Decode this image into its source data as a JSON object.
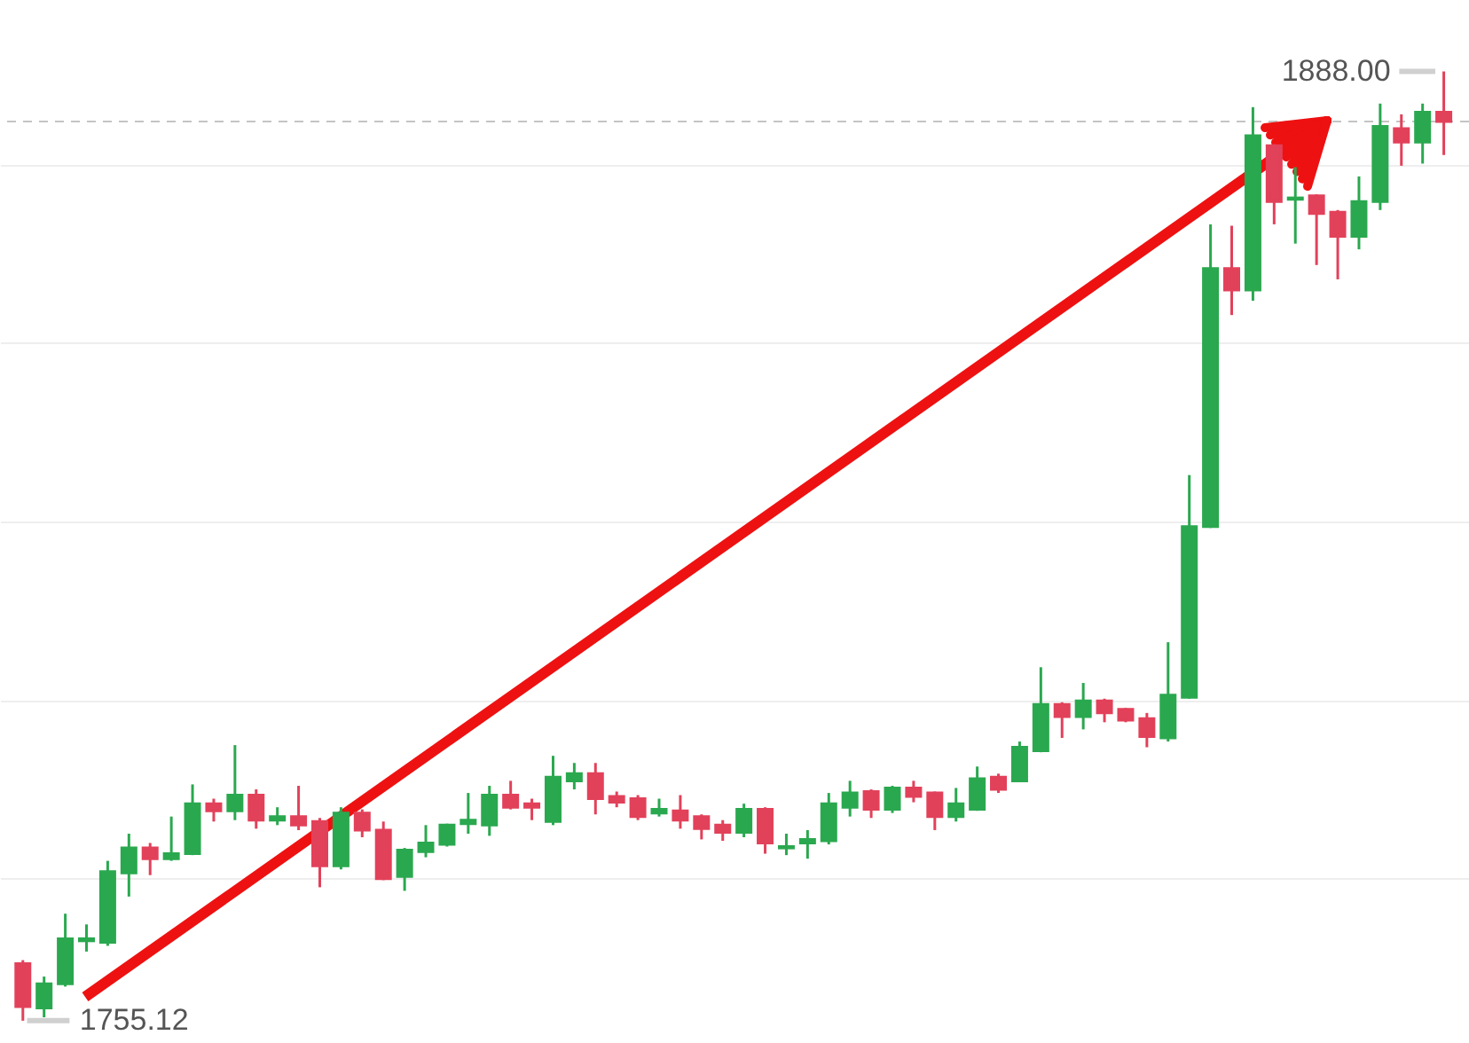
{
  "chart_data": {
    "type": "candlestick",
    "categories": [
      null,
      null,
      null,
      null,
      null,
      null,
      null,
      null,
      null,
      null,
      null,
      null,
      null,
      null,
      null,
      null,
      null,
      null,
      null,
      null,
      null,
      null,
      null,
      null,
      null,
      null,
      null,
      null,
      null,
      null,
      null,
      null,
      null,
      null,
      null,
      null,
      null,
      null,
      null,
      null,
      null,
      null,
      null,
      null,
      null,
      null,
      null,
      null,
      null,
      null,
      null,
      null,
      null,
      null,
      null,
      null,
      null,
      null,
      null,
      null,
      null,
      null,
      null,
      null,
      null,
      null,
      null,
      null
    ],
    "ohlc": [
      [
        1763.1,
        1763.6,
        1755.12,
        1757.1
      ],
      [
        1756.9,
        1761.3,
        1755.6,
        1760.3
      ],
      [
        1760.3,
        1770.1,
        1759.9,
        1766.6
      ],
      [
        1766.3,
        1768.6,
        1764.8,
        1766.6
      ],
      [
        1766.1,
        1777.5,
        1765.6,
        1776.0
      ],
      [
        1775.8,
        1781.3,
        1772.5,
        1779.3
      ],
      [
        1779.3,
        1780.0,
        1775.5,
        1777.8
      ],
      [
        1777.8,
        1783.7,
        1777.5,
        1778.5
      ],
      [
        1778.5,
        1788.2,
        1778.3,
        1785.5
      ],
      [
        1785.5,
        1786.2,
        1783.0,
        1784.5
      ],
      [
        1784.5,
        1793.7,
        1783.2,
        1786.7
      ],
      [
        1786.7,
        1787.5,
        1782.0,
        1783.2
      ],
      [
        1783.2,
        1785.0,
        1782.5,
        1783.7
      ],
      [
        1783.7,
        1788.0,
        1781.8,
        1782.5
      ],
      [
        1783.0,
        1783.5,
        1773.8,
        1776.8
      ],
      [
        1776.8,
        1785.0,
        1776.3,
        1784.2
      ],
      [
        1784.2,
        1784.7,
        1780.8,
        1781.8
      ],
      [
        1781.8,
        1783.0,
        1774.8,
        1775.0
      ],
      [
        1775.3,
        1779.3,
        1773.3,
        1779.0
      ],
      [
        1778.8,
        1782.5,
        1778.0,
        1780.0
      ],
      [
        1779.8,
        1782.7,
        1779.5,
        1782.5
      ],
      [
        1782.7,
        1787.0,
        1781.3,
        1783.2
      ],
      [
        1782.5,
        1788.0,
        1781.0,
        1786.7
      ],
      [
        1786.7,
        1788.7,
        1784.7,
        1785.0
      ],
      [
        1785.5,
        1786.2,
        1783.2,
        1785.0
      ],
      [
        1783.0,
        1792.2,
        1782.5,
        1789.2
      ],
      [
        1788.7,
        1791.2,
        1787.5,
        1789.7
      ],
      [
        1789.7,
        1791.2,
        1784.0,
        1786.2
      ],
      [
        1786.5,
        1787.2,
        1785.0,
        1785.7
      ],
      [
        1786.2,
        1786.7,
        1783.2,
        1783.7
      ],
      [
        1784.2,
        1786.2,
        1783.7,
        1784.7
      ],
      [
        1784.5,
        1786.7,
        1782.0,
        1783.2
      ],
      [
        1783.7,
        1784.0,
        1780.5,
        1782.0
      ],
      [
        1782.5,
        1783.2,
        1780.3,
        1781.5
      ],
      [
        1781.5,
        1785.5,
        1780.8,
        1784.7
      ],
      [
        1784.7,
        1785.0,
        1778.5,
        1780.0
      ],
      [
        1779.3,
        1781.3,
        1778.3,
        1779.5
      ],
      [
        1780.0,
        1781.8,
        1777.8,
        1780.5
      ],
      [
        1780.3,
        1787.0,
        1779.8,
        1785.5
      ],
      [
        1785.0,
        1788.7,
        1783.7,
        1787.0
      ],
      [
        1787.2,
        1787.5,
        1783.5,
        1784.7
      ],
      [
        1784.7,
        1788.0,
        1784.2,
        1787.7
      ],
      [
        1787.7,
        1788.7,
        1785.7,
        1786.5
      ],
      [
        1787.0,
        1787.2,
        1781.8,
        1783.7
      ],
      [
        1783.7,
        1787.7,
        1783.0,
        1785.5
      ],
      [
        1784.7,
        1790.7,
        1784.5,
        1789.0
      ],
      [
        1789.2,
        1789.7,
        1787.0,
        1787.5
      ],
      [
        1788.7,
        1794.2,
        1788.5,
        1793.4
      ],
      [
        1792.9,
        1804.6,
        1792.7,
        1799.4
      ],
      [
        1799.4,
        1799.7,
        1794.7,
        1797.7
      ],
      [
        1797.7,
        1802.4,
        1795.9,
        1799.9
      ],
      [
        1799.9,
        1800.2,
        1796.9,
        1798.2
      ],
      [
        1798.7,
        1798.9,
        1796.9,
        1797.2
      ],
      [
        1797.4,
        1798.2,
        1793.4,
        1794.9
      ],
      [
        1794.7,
        1808.1,
        1794.2,
        1800.7
      ],
      [
        1800.4,
        1831.5,
        1800.2,
        1824.3
      ],
      [
        1824.3,
        1866.6,
        1824.1,
        1860.4
      ],
      [
        1860.4,
        1866.4,
        1853.9,
        1857.4
      ],
      [
        1857.4,
        1883.0,
        1855.9,
        1879.0
      ],
      [
        1877.6,
        1877.8,
        1866.6,
        1869.8
      ],
      [
        1870.1,
        1874.6,
        1863.9,
        1870.3
      ],
      [
        1870.6,
        1870.8,
        1860.9,
        1868.1
      ],
      [
        1868.3,
        1868.6,
        1858.9,
        1864.9
      ],
      [
        1864.9,
        1873.3,
        1863.1,
        1869.8
      ],
      [
        1869.8,
        1883.5,
        1868.6,
        1880.3
      ],
      [
        1880.0,
        1882.0,
        1874.8,
        1878.1
      ],
      [
        1878.1,
        1883.5,
        1875.1,
        1882.3
      ],
      [
        1882.3,
        1888.0,
        1876.3,
        1881.0
      ]
    ],
    "colors": [
      "#e2415a",
      "#2aa84f",
      "#2aa84f",
      "#2aa84f",
      "#2aa84f",
      "#2aa84f",
      "#e2415a",
      "#2aa84f",
      "#2aa84f",
      "#e2415a",
      "#2aa84f",
      "#e2415a",
      "#2aa84f",
      "#e2415a",
      "#e2415a",
      "#2aa84f",
      "#e2415a",
      "#e2415a",
      "#2aa84f",
      "#2aa84f",
      "#2aa84f",
      "#2aa84f",
      "#2aa84f",
      "#e2415a",
      "#e2415a",
      "#2aa84f",
      "#2aa84f",
      "#e2415a",
      "#e2415a",
      "#e2415a",
      "#2aa84f",
      "#e2415a",
      "#e2415a",
      "#e2415a",
      "#2aa84f",
      "#e2415a",
      "#2aa84f",
      "#2aa84f",
      "#2aa84f",
      "#2aa84f",
      "#e2415a",
      "#2aa84f",
      "#e2415a",
      "#e2415a",
      "#2aa84f",
      "#2aa84f",
      "#e2415a",
      "#2aa84f",
      "#2aa84f",
      "#e2415a",
      "#2aa84f",
      "#e2415a",
      "#e2415a",
      "#e2415a",
      "#2aa84f",
      "#2aa84f",
      "#2aa84f",
      "#e2415a",
      "#2aa84f",
      "#e2415a",
      "#2aa84f",
      "#e2415a",
      "#e2415a",
      "#2aa84f",
      "#2aa84f",
      "#e2415a",
      "#2aa84f",
      "#e2415a"
    ],
    "ylim": [
      1752,
      1898
    ],
    "yticks": [
      {
        "value": 1775,
        "label": null
      },
      {
        "value": 1800,
        "label": null
      },
      {
        "value": 1825,
        "label": null
      },
      {
        "value": 1850,
        "label": null
      },
      {
        "value": 1875,
        "label": null
      }
    ],
    "grid": "y",
    "tick_labels": false,
    "ref_lines": [
      {
        "axis": "y",
        "value": 1881.0,
        "color": "#c4c4c4",
        "line_style": "dashed"
      }
    ],
    "annotations": [
      "1888.00",
      "1755.12"
    ]
  }
}
